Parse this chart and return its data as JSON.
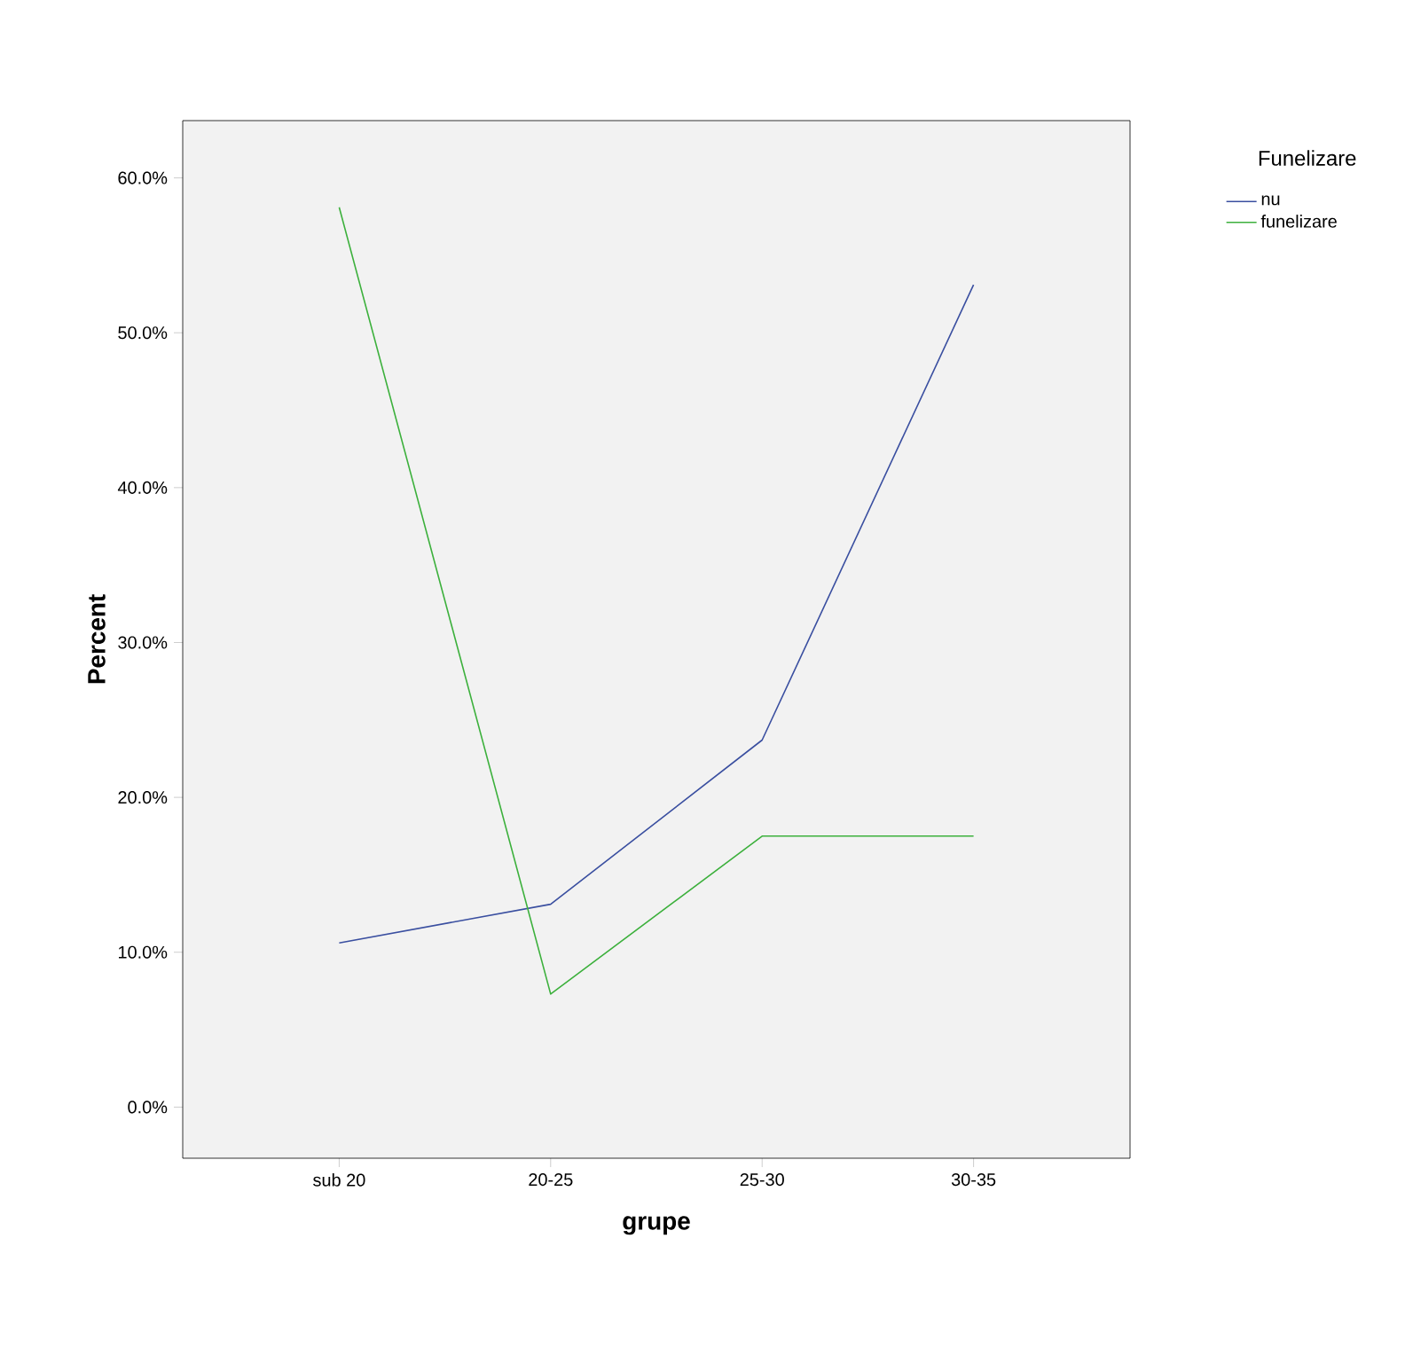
{
  "chart_data": {
    "type": "line",
    "xlabel": "grupe",
    "ylabel": "Percent",
    "legend_title": "Funelizare",
    "legend": "top right",
    "categories": [
      "sub 20",
      "20-25",
      "25-30",
      "30-35"
    ],
    "ylim": [
      -3.3,
      63.7
    ],
    "yticks": [
      {
        "value": 0,
        "label": "0.0%"
      },
      {
        "value": 10,
        "label": "10.0%"
      },
      {
        "value": 20,
        "label": "20.0%"
      },
      {
        "value": 30,
        "label": "30.0%"
      },
      {
        "value": 40,
        "label": "40.0%"
      },
      {
        "value": 50,
        "label": "50.0%"
      },
      {
        "value": 60,
        "label": "60.0%"
      }
    ],
    "series": [
      {
        "name": "nu",
        "color": "#3a4fa0",
        "values": [
          10.6,
          13.1,
          23.7,
          53.1
        ]
      },
      {
        "name": "funelizare",
        "color": "#3cb03c",
        "values": [
          58.1,
          7.3,
          17.5,
          17.5
        ]
      }
    ]
  }
}
